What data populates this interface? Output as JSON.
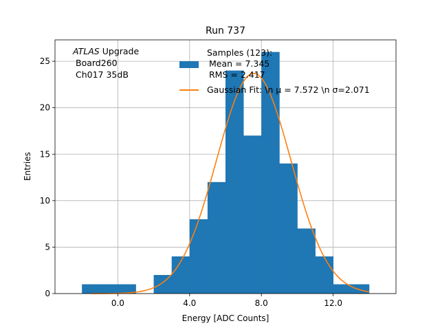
{
  "chart_data": {
    "type": "bar",
    "title": "Run 737",
    "xlabel": "Energy [ADC Counts]",
    "ylabel": "Entries",
    "xlim": [
      -3.5,
      15.5
    ],
    "ylim": [
      0,
      27.3
    ],
    "grid": true,
    "x_ticks": [
      0,
      4,
      8,
      12
    ],
    "x_tick_labels": [
      "0.0",
      "4.0",
      "8.0",
      "12.0"
    ],
    "y_ticks": [
      0,
      5,
      10,
      15,
      20,
      25
    ],
    "y_tick_labels": [
      "0",
      "5",
      "10",
      "15",
      "20",
      "25"
    ],
    "histogram": {
      "bin_edges": [
        -2,
        -1,
        0,
        1,
        2,
        3,
        4,
        5,
        6,
        7,
        8,
        9,
        10,
        11,
        12,
        13,
        14
      ],
      "counts": [
        1,
        1,
        1,
        0,
        2,
        4,
        8,
        12,
        24,
        17,
        26,
        14,
        7,
        4,
        1,
        1
      ],
      "color": "#1f77b4"
    },
    "fit": {
      "mu": 7.572,
      "sigma": 2.071,
      "amplitude": 23.7,
      "x_range": [
        -1.5,
        14
      ],
      "color": "#ff7f0e"
    },
    "annotation_lines": [
      "ATLAS",
      "Upgrade",
      "Board260",
      "Ch017 35dB"
    ],
    "legend": {
      "placement": "top-right",
      "entries": [
        {
          "lines": [
            "Samples (123):",
            "Mean = 7.345",
            "RMS = 2.417"
          ],
          "kind": "patch",
          "color": "#1f77b4"
        },
        {
          "lines": [
            "Gaussian Fit: \\n μ = 7.572 \\n σ=2.071"
          ],
          "kind": "line",
          "color": "#ff7f0e"
        }
      ]
    }
  }
}
